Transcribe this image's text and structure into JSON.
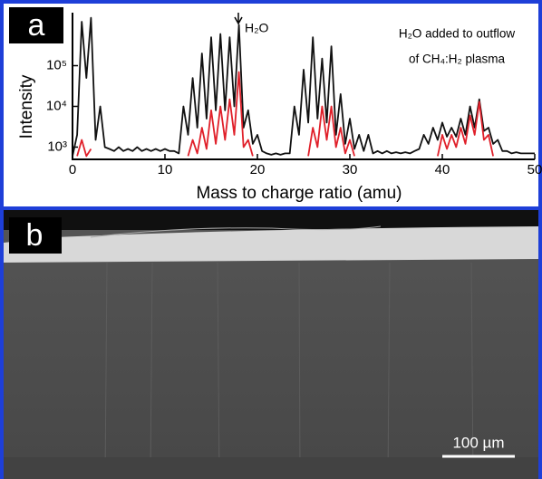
{
  "chart_data": {
    "type": "line",
    "xlabel": "Mass to charge ratio (amu)",
    "ylabel": "Intensity",
    "annotations": [
      "H₂O",
      "H₂O added to outflow",
      "of CH₄:H₂ plasma"
    ],
    "log_y": true,
    "xlim": [
      0,
      50
    ],
    "xticks": [
      0,
      10,
      20,
      30,
      40,
      50
    ],
    "ylim": [
      500,
      2000000
    ],
    "yticks": [
      {
        "value": 1000,
        "label": "10³"
      },
      {
        "value": 10000,
        "label": "10⁴"
      },
      {
        "value": 100000,
        "label": "10⁵"
      }
    ],
    "x": [
      0,
      0.5,
      1,
      1.5,
      2,
      2.5,
      3,
      3.5,
      4,
      4.5,
      5,
      5.5,
      6,
      6.5,
      7,
      7.5,
      8,
      8.5,
      9,
      9.5,
      10,
      10.5,
      11,
      11.5,
      12,
      12.5,
      13,
      13.5,
      14,
      14.5,
      15,
      15.5,
      16,
      16.5,
      17,
      17.5,
      18,
      18.5,
      19,
      19.5,
      20,
      20.5,
      21,
      21.5,
      22,
      22.5,
      23,
      23.5,
      24,
      24.5,
      25,
      25.5,
      26,
      26.5,
      27,
      27.5,
      28,
      28.5,
      29,
      29.5,
      30,
      30.5,
      31,
      31.5,
      32,
      32.5,
      33,
      33.5,
      34,
      34.5,
      35,
      35.5,
      36,
      36.5,
      37,
      37.5,
      38,
      38.5,
      39,
      39.5,
      40,
      40.5,
      41,
      41.5,
      42,
      42.5,
      43,
      43.5,
      44,
      44.5,
      45,
      45.5,
      46,
      46.5,
      47,
      47.5,
      48,
      48.5,
      49,
      49.5,
      50
    ],
    "series": [
      {
        "color": "#111111",
        "values": [
          600,
          2000,
          1200000,
          50000,
          1500000,
          1500,
          10000,
          1000,
          900,
          800,
          1000,
          800,
          900,
          800,
          1000,
          800,
          900,
          800,
          900,
          800,
          900,
          800,
          800,
          700,
          10000,
          2000,
          50000,
          3000,
          200000,
          5000,
          500000,
          8000,
          600000,
          8000,
          500000,
          10000,
          1000000,
          3000,
          8000,
          1200,
          2000,
          800,
          700,
          650,
          700,
          650,
          700,
          700,
          10000,
          2000,
          80000,
          4000,
          500000,
          5000,
          150000,
          4000,
          300000,
          2000,
          20000,
          1200,
          5000,
          900,
          2000,
          800,
          2000,
          700,
          800,
          700,
          800,
          700,
          750,
          700,
          750,
          700,
          800,
          900,
          2000,
          1200,
          3000,
          1500,
          4000,
          1800,
          3000,
          1800,
          5000,
          2000,
          10000,
          3000,
          15000,
          2500,
          3000,
          1200,
          1500,
          800,
          800,
          700,
          750,
          700,
          700,
          700,
          700
        ]
      },
      {
        "color": "#e0202a",
        "values": [
          null,
          600,
          1500,
          600,
          900,
          null,
          null,
          null,
          null,
          null,
          null,
          null,
          null,
          null,
          null,
          null,
          null,
          null,
          null,
          null,
          null,
          null,
          null,
          null,
          null,
          600,
          1500,
          700,
          3000,
          900,
          8000,
          1200,
          10000,
          1500,
          15000,
          2000,
          70000,
          1000,
          1500,
          600,
          null,
          null,
          null,
          null,
          null,
          null,
          null,
          null,
          null,
          null,
          null,
          600,
          3000,
          1000,
          10000,
          1500,
          10000,
          1000,
          3000,
          700,
          1500,
          600,
          null,
          null,
          null,
          null,
          null,
          null,
          null,
          null,
          null,
          null,
          null,
          null,
          null,
          null,
          null,
          null,
          null,
          600,
          2000,
          900,
          2000,
          1000,
          3000,
          1200,
          6000,
          2000,
          13000,
          1500,
          2000,
          600,
          null,
          null,
          null,
          null,
          null,
          null,
          null,
          null,
          null
        ]
      }
    ]
  },
  "panel_labels": [
    "a",
    "b"
  ],
  "scale_bar": "100 µm"
}
